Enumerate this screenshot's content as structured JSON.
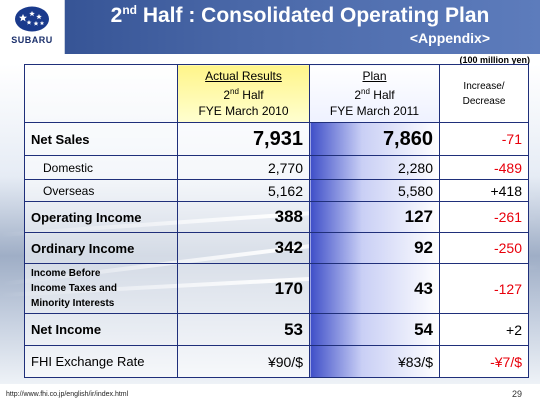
{
  "header": {
    "title_prefix": "2",
    "title_sup": "nd",
    "title_suffix": " Half : Consolidated Operating Plan",
    "subtitle": "<Appendix>",
    "logo_text": "SUBARU"
  },
  "unit_note": "(100 million yen)",
  "columns": {
    "actual": {
      "line1": "Actual Results",
      "line2_num": "2",
      "line2_sup": "nd",
      "line2_suffix": " Half",
      "line3": "FYE March 2010"
    },
    "plan": {
      "line1": "Plan",
      "line2_num": "2",
      "line2_sup": "nd",
      "line2_suffix": " Half",
      "line3": "FYE March 2011"
    },
    "increase": {
      "line1": "Increase/",
      "line2": "Decrease"
    }
  },
  "rows": [
    {
      "label": "Net Sales",
      "actual": "7,931",
      "plan": "7,860",
      "change": "-71"
    },
    {
      "label": "Domestic",
      "actual": "2,770",
      "plan": "2,280",
      "change": "-489"
    },
    {
      "label": "Overseas",
      "actual": "5,162",
      "plan": "5,580",
      "change": "+418"
    },
    {
      "label": "Operating Income",
      "actual": "388",
      "plan": "127",
      "change": "-261"
    },
    {
      "label": "Ordinary Income",
      "actual": "342",
      "plan": "92",
      "change": "-250"
    },
    {
      "label_line1": "Income Before",
      "label_line2": "Income Taxes and",
      "label_line3": "Minority Interests",
      "actual": "170",
      "plan": "43",
      "change": "-127"
    },
    {
      "label": "Net Income",
      "actual": "53",
      "plan": "54",
      "change": "+2"
    },
    {
      "label": "FHI Exchange Rate",
      "actual": "¥90/$",
      "plan": "¥83/$",
      "change": "-¥7/$"
    }
  ],
  "footer": {
    "url": "http://www.fhi.co.jp/english/ir/index.html",
    "page": "29"
  }
}
